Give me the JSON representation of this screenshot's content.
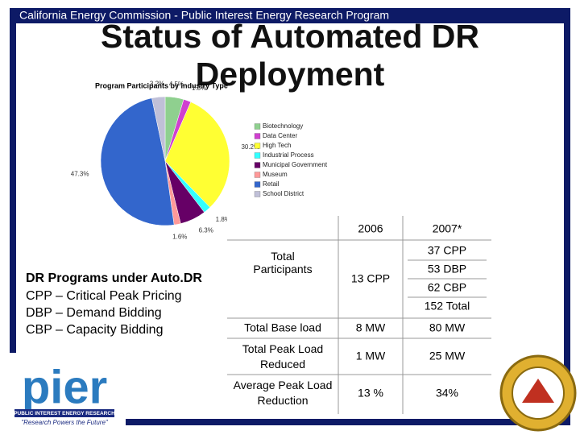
{
  "header": {
    "banner": "California Energy Commission - Public Interest Energy Research Program",
    "title": "Status of Automated DR Deployment"
  },
  "pie": {
    "type": "pie",
    "title": "Program Participants by Industry Type",
    "categories": [
      "Biotechnology",
      "Data Center",
      "High Tech",
      "Industrial Process",
      "Municipal Government",
      "Museum",
      "Retail",
      "School District"
    ],
    "values": [
      4.5,
      1.8,
      30.2,
      1.8,
      6.3,
      1.6,
      47.3,
      3.2
    ],
    "value_labels": [
      "4.5%",
      "1.8%",
      "30.2%",
      "1.8%",
      "6.3%",
      "1.6%",
      "47.3%",
      "3.2%"
    ],
    "colors": [
      "#8fd08f",
      "#d040d0",
      "#ffff33",
      "#33ffff",
      "#660066",
      "#ff9999",
      "#3366cc",
      "#c0c0d8"
    ]
  },
  "programs": {
    "heading": "DR Programs under Auto.DR",
    "items": [
      "CPP – Critical Peak Pricing",
      "DBP – Demand Bidding",
      "CBP – Capacity Bidding"
    ]
  },
  "table": {
    "columns": [
      "2006",
      "2007*"
    ],
    "rows": [
      [
        "Total Participants",
        "13 CPP",
        [
          "37 CPP",
          "53 DBP",
          "62 CBP",
          "152 Total"
        ]
      ],
      [
        "Total Base load",
        "8 MW",
        "80 MW"
      ],
      [
        "Total Peak Load Reduced",
        "1 MW",
        "25 MW"
      ],
      [
        "Average Peak Load Reduction",
        "13 %",
        "34%"
      ]
    ]
  },
  "logo": {
    "name": "pier",
    "org": "PUBLIC INTEREST ENERGY RESEARCH",
    "tagline": "\"Research Powers the Future\""
  }
}
